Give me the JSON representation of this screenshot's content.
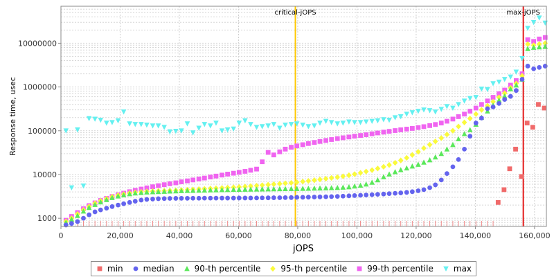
{
  "chart_data": {
    "type": "scatter",
    "xlabel": "jOPS",
    "ylabel": "Response time, usec",
    "yscale": "log",
    "xlim": [
      0,
      164000
    ],
    "ylim": [
      650,
      70000000
    ],
    "xticks": [
      0,
      20000,
      40000,
      60000,
      80000,
      100000,
      120000,
      140000,
      160000
    ],
    "xtick_labels": [
      "0",
      "20,000",
      "40,000",
      "60,000",
      "80,000",
      "100,000",
      "120,000",
      "140,000",
      "160,000"
    ],
    "yticks": [
      1000,
      10000,
      100000,
      1000000,
      10000000
    ],
    "ytick_labels": [
      "1000",
      "10000",
      "100000",
      "1000000",
      "10000000"
    ],
    "grid": true,
    "legend_position": "bottom",
    "vlines": [
      {
        "label": "critical-jOPS",
        "x": 79200,
        "color": "#ffc800"
      },
      {
        "label": "max-jOPS",
        "x": 156200,
        "color": "#e31b1b"
      }
    ],
    "series": [
      {
        "name": "min",
        "color": "#f06a6a",
        "marker": "square",
        "x": [
          147700,
          149700,
          151600,
          153600,
          155600,
          157500,
          159400,
          161300,
          163300
        ],
        "y": [
          2300,
          4500,
          13500,
          38000,
          9000,
          150000,
          120000,
          400000,
          330000
        ]
      },
      {
        "name": "median",
        "color": "#6464ee",
        "marker": "circle",
        "x": [
          1700,
          3600,
          5600,
          7600,
          9500,
          11500,
          13400,
          15400,
          17300,
          19300,
          21200,
          23200,
          25100,
          27100,
          29000,
          31000,
          32900,
          34900,
          36800,
          38800,
          40700,
          42700,
          44600,
          46600,
          48500,
          50500,
          52400,
          54400,
          56300,
          58300,
          60200,
          62200,
          64100,
          66100,
          68000,
          70000,
          71900,
          73900,
          75800,
          77800,
          79700,
          81700,
          83600,
          85600,
          87500,
          89500,
          91400,
          93400,
          95300,
          97300,
          99200,
          101200,
          103100,
          105100,
          107000,
          109000,
          110900,
          112900,
          114800,
          116800,
          118700,
          120700,
          122600,
          124600,
          126500,
          128500,
          130400,
          132400,
          134300,
          136300,
          138200,
          140200,
          142100,
          144100,
          146000,
          148000,
          149900,
          151900,
          153800,
          155800,
          157700,
          159700,
          161600,
          163600
        ],
        "y": [
          700,
          760,
          840,
          1000,
          1200,
          1400,
          1550,
          1700,
          1850,
          2000,
          2150,
          2300,
          2450,
          2600,
          2700,
          2750,
          2800,
          2820,
          2840,
          2850,
          2860,
          2860,
          2870,
          2870,
          2880,
          2880,
          2880,
          2890,
          2890,
          2890,
          2900,
          2900,
          2900,
          2910,
          2920,
          2930,
          2940,
          2950,
          2960,
          2970,
          3000,
          3020,
          3040,
          3060,
          3080,
          3100,
          3130,
          3160,
          3200,
          3250,
          3300,
          3350,
          3400,
          3460,
          3520,
          3580,
          3650,
          3720,
          3800,
          3900,
          4050,
          4250,
          4500,
          5000,
          5800,
          7500,
          10500,
          15000,
          22000,
          38000,
          75000,
          150000,
          195000,
          320000,
          350000,
          420000,
          520000,
          610000,
          830000,
          1500000,
          3000000,
          2600000,
          2800000,
          3000000
        ]
      },
      {
        "name": "90-th percentile",
        "color": "#5ae85a",
        "marker": "triangle",
        "x": [
          1700,
          3600,
          5600,
          7600,
          9500,
          11500,
          13400,
          15400,
          17300,
          19300,
          21200,
          23200,
          25100,
          27100,
          29000,
          31000,
          32900,
          34900,
          36800,
          38800,
          40700,
          42700,
          44600,
          46600,
          48500,
          50500,
          52400,
          54400,
          56300,
          58300,
          60200,
          62200,
          64100,
          66100,
          68000,
          70000,
          71900,
          73900,
          75800,
          77800,
          79700,
          81700,
          83600,
          85600,
          87500,
          89500,
          91400,
          93400,
          95300,
          97300,
          99200,
          101200,
          103100,
          105100,
          107000,
          109000,
          110900,
          112900,
          114800,
          116800,
          118700,
          120700,
          122600,
          124600,
          126500,
          128500,
          130400,
          132400,
          134300,
          136300,
          138200,
          140200,
          142100,
          144100,
          146000,
          148000,
          149900,
          151900,
          153800,
          155800,
          157700,
          159700,
          161600,
          163600
        ],
        "y": [
          800,
          950,
          1150,
          1450,
          1750,
          2050,
          2350,
          2650,
          2950,
          3200,
          3400,
          3600,
          3750,
          3850,
          3950,
          4000,
          4050,
          4100,
          4150,
          4200,
          4250,
          4280,
          4310,
          4340,
          4370,
          4400,
          4430,
          4460,
          4490,
          4520,
          4550,
          4570,
          4590,
          4610,
          4630,
          4650,
          4670,
          4690,
          4710,
          4730,
          4750,
          4780,
          4810,
          4840,
          4880,
          4920,
          4960,
          5000,
          5100,
          5200,
          5400,
          5650,
          6000,
          6600,
          7500,
          8800,
          10200,
          11500,
          12800,
          14000,
          15500,
          17000,
          19000,
          21500,
          25000,
          30000,
          38000,
          48000,
          65000,
          85000,
          105000,
          140000,
          200000,
          280000,
          380000,
          500000,
          620000,
          900000,
          1100000,
          1500000,
          7500000,
          8000000,
          8200000,
          8400000
        ]
      },
      {
        "name": "95-th percentile",
        "color": "#fafa3c",
        "marker": "diamond",
        "x": [
          1700,
          3600,
          5600,
          7600,
          9500,
          11500,
          13400,
          15400,
          17300,
          19300,
          21200,
          23200,
          25100,
          27100,
          29000,
          31000,
          32900,
          34900,
          36800,
          38800,
          40700,
          42700,
          44600,
          46600,
          48500,
          50500,
          52400,
          54400,
          56300,
          58300,
          60200,
          62200,
          64100,
          66100,
          68000,
          70000,
          71900,
          73900,
          75800,
          77800,
          79700,
          81700,
          83600,
          85600,
          87500,
          89500,
          91400,
          93400,
          95300,
          97300,
          99200,
          101200,
          103100,
          105100,
          107000,
          109000,
          110900,
          112900,
          114800,
          116800,
          118700,
          120700,
          122600,
          124600,
          126500,
          128500,
          130400,
          132400,
          134300,
          136300,
          138200,
          140200,
          142100,
          144100,
          146000,
          148000,
          149900,
          151900,
          153800,
          155800,
          157700,
          159700,
          161600,
          163600
        ],
        "y": [
          850,
          1000,
          1250,
          1550,
          1850,
          2200,
          2500,
          2800,
          3100,
          3350,
          3550,
          3750,
          3900,
          4000,
          4100,
          4150,
          4200,
          4250,
          4300,
          4350,
          4420,
          4490,
          4560,
          4630,
          4700,
          4780,
          4860,
          4940,
          5020,
          5100,
          5200,
          5300,
          5420,
          5550,
          5700,
          5850,
          6000,
          6150,
          6300,
          6450,
          6650,
          6900,
          7150,
          7400,
          7700,
          8000,
          8350,
          8700,
          9100,
          9600,
          10200,
          10900,
          11700,
          12600,
          13700,
          15000,
          16500,
          18500,
          21000,
          24000,
          28000,
          33000,
          40000,
          48000,
          57000,
          68000,
          82000,
          100000,
          125000,
          155000,
          190000,
          240000,
          300000,
          370000,
          460000,
          580000,
          720000,
          950000,
          1200000,
          1800000,
          9500000,
          9000000,
          9500000,
          10000000
        ]
      },
      {
        "name": "99-th percentile",
        "color": "#f064f0",
        "marker": "square",
        "x": [
          1700,
          3600,
          5600,
          7600,
          9500,
          11500,
          13400,
          15400,
          17300,
          19300,
          21200,
          23200,
          25100,
          27100,
          29000,
          31000,
          32900,
          34900,
          36800,
          38800,
          40700,
          42700,
          44600,
          46600,
          48500,
          50500,
          52400,
          54400,
          56300,
          58300,
          60200,
          62200,
          64100,
          66100,
          68000,
          70000,
          71900,
          73900,
          75800,
          77800,
          79700,
          81700,
          83600,
          85600,
          87500,
          89500,
          91400,
          93400,
          95300,
          97300,
          99200,
          101200,
          103100,
          105100,
          107000,
          109000,
          110900,
          112900,
          114800,
          116800,
          118700,
          120700,
          122600,
          124600,
          126500,
          128500,
          130400,
          132400,
          134300,
          136300,
          138200,
          140200,
          142100,
          144100,
          146000,
          148000,
          149900,
          151900,
          153800,
          155800,
          157700,
          159700,
          161600,
          163600
        ],
        "y": [
          900,
          1100,
          1350,
          1650,
          1950,
          2250,
          2550,
          2850,
          3150,
          3450,
          3750,
          4050,
          4350,
          4650,
          4950,
          5250,
          5550,
          5850,
          6150,
          6450,
          6800,
          7150,
          7500,
          7900,
          8300,
          8750,
          9200,
          9700,
          10200,
          10700,
          11200,
          11800,
          12500,
          13300,
          19500,
          32000,
          28000,
          33000,
          38000,
          42000,
          45000,
          48000,
          51000,
          54000,
          57000,
          60000,
          63000,
          66000,
          69000,
          72000,
          75000,
          78000,
          81000,
          85000,
          89000,
          93000,
          97000,
          101000,
          105000,
          109000,
          113000,
          118000,
          124000,
          131000,
          139000,
          150000,
          165000,
          185000,
          210000,
          240000,
          280000,
          330000,
          400000,
          480000,
          580000,
          700000,
          850000,
          1100000,
          1400000,
          2000000,
          12000000,
          11000000,
          12500000,
          13500000
        ]
      },
      {
        "name": "max",
        "color": "#64f0f0",
        "marker": "triangle-down",
        "x": [
          1700,
          3600,
          5600,
          7600,
          9500,
          11500,
          13400,
          15400,
          17300,
          19300,
          21200,
          23200,
          25100,
          27100,
          29000,
          31000,
          32900,
          34900,
          36800,
          38800,
          40700,
          42700,
          44600,
          46600,
          48500,
          50500,
          52400,
          54400,
          56300,
          58300,
          60200,
          62200,
          64100,
          66100,
          68000,
          70000,
          71900,
          73900,
          75800,
          77800,
          79700,
          81700,
          83600,
          85600,
          87500,
          89500,
          91400,
          93400,
          95300,
          97300,
          99200,
          101200,
          103100,
          105100,
          107000,
          109000,
          110900,
          112900,
          114800,
          116800,
          118700,
          120700,
          122600,
          124600,
          126500,
          128500,
          130400,
          132400,
          134300,
          136300,
          138200,
          140200,
          142100,
          144100,
          146000,
          148000,
          149900,
          151900,
          153800,
          155800,
          157700,
          159700,
          161600,
          163600
        ],
        "y": [
          100000,
          5000,
          105000,
          5500,
          190000,
          185000,
          175000,
          150000,
          155000,
          170000,
          270000,
          145000,
          140000,
          140000,
          135000,
          130000,
          130000,
          120000,
          95000,
          98000,
          100000,
          145000,
          90000,
          115000,
          140000,
          130000,
          150000,
          100000,
          105000,
          110000,
          150000,
          170000,
          140000,
          120000,
          125000,
          130000,
          140000,
          115000,
          135000,
          140000,
          145000,
          135000,
          125000,
          130000,
          150000,
          165000,
          155000,
          145000,
          150000,
          160000,
          155000,
          155000,
          160000,
          165000,
          170000,
          180000,
          175000,
          200000,
          210000,
          240000,
          260000,
          280000,
          300000,
          290000,
          270000,
          310000,
          360000,
          330000,
          400000,
          480000,
          550000,
          580000,
          900000,
          880000,
          1200000,
          1300000,
          1500000,
          1700000,
          2200000,
          4500000,
          22000000,
          30000000,
          38000000,
          29000000
        ]
      }
    ]
  }
}
